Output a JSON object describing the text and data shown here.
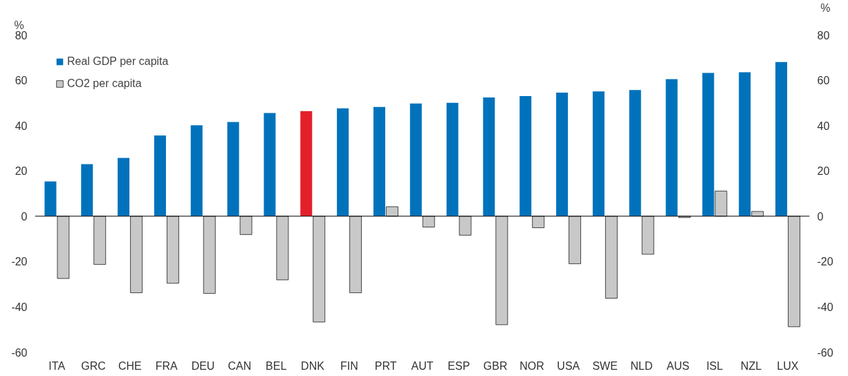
{
  "chart_data": {
    "type": "bar",
    "ylabel": "%",
    "y2label": "%",
    "categories": [
      "ITA",
      "GRC",
      "CHE",
      "FRA",
      "DEU",
      "CAN",
      "BEL",
      "DNK",
      "FIN",
      "PRT",
      "AUT",
      "ESP",
      "GBR",
      "NOR",
      "USA",
      "SWE",
      "NLD",
      "AUS",
      "ISL",
      "NZL",
      "LUX"
    ],
    "series": [
      {
        "name": "Real GDP per capita",
        "color": "#0072bc",
        "colors": [
          "#0072bc",
          "#0072bc",
          "#0072bc",
          "#0072bc",
          "#0072bc",
          "#0072bc",
          "#0072bc",
          "#e3202a",
          "#0072bc",
          "#0072bc",
          "#0072bc",
          "#0072bc",
          "#0072bc",
          "#0072bc",
          "#0072bc",
          "#0072bc",
          "#0072bc",
          "#0072bc",
          "#0072bc",
          "#0072bc",
          "#0072bc"
        ],
        "values": [
          15.3,
          23,
          25.7,
          35.6,
          40.1,
          41.6,
          45.5,
          46.4,
          47.6,
          48.2,
          49.7,
          50,
          52.4,
          53,
          54.5,
          55.1,
          55.7,
          60.5,
          63.2,
          63.5,
          68
        ]
      },
      {
        "name": "CO2 per capita",
        "color": "#c8c8c8",
        "values": [
          -27.5,
          -21.3,
          -33.8,
          -29.6,
          -34.1,
          -8.1,
          -28.1,
          -46.7,
          -33.8,
          4.2,
          -4.8,
          -8.4,
          -47.9,
          -5.1,
          -21,
          -36.2,
          -16.8,
          -0.6,
          11.1,
          2.1,
          -48.8
        ]
      }
    ],
    "ylim": [
      -60,
      80
    ],
    "yticks": [
      -60,
      -40,
      -20,
      0,
      20,
      40,
      60,
      80
    ],
    "y2lim": [
      -60,
      80
    ],
    "y2ticks": [
      -60,
      -40,
      -20,
      0,
      20,
      40,
      60,
      80
    ],
    "grid": false,
    "ref_lines": [
      {
        "axis": "y",
        "value": 0,
        "color": "#000000"
      }
    ],
    "legend": "top left"
  }
}
